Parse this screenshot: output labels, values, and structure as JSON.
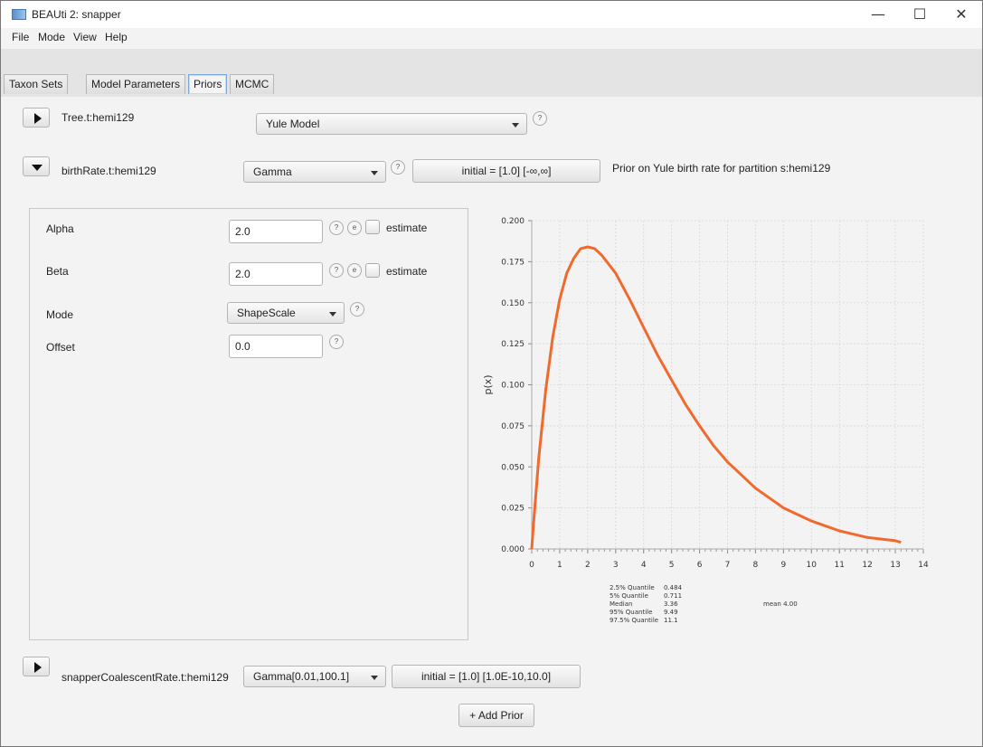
{
  "window": {
    "title": "BEAUti 2: snapper",
    "minimize": "—",
    "maximize": "☐",
    "close": "✕"
  },
  "menu": [
    {
      "label": "File"
    },
    {
      "label": "Mode"
    },
    {
      "label": "View"
    },
    {
      "label": "Help"
    }
  ],
  "tabs": [
    {
      "label": "Taxon Sets"
    },
    {
      "label": "Model Parameters"
    },
    {
      "label": "Priors",
      "active": true
    },
    {
      "label": "MCMC"
    }
  ],
  "priors": {
    "tree": {
      "label": "Tree.t:hemi129",
      "value": "Yule Model"
    },
    "birth": {
      "label": "birthRate.t:hemi129",
      "distribution": "Gamma",
      "initial": "initial = [1.0] [-∞,∞]",
      "description": "Prior on Yule birth rate for partition s:hemi129"
    },
    "params": {
      "alpha_label": "Alpha",
      "alpha_value": "2.0",
      "beta_label": "Beta",
      "beta_value": "2.0",
      "estimate_label": "estimate",
      "mode_label": "Mode",
      "mode_value": "ShapeScale",
      "offset_label": "Offset",
      "offset_value": "0.0"
    },
    "coalescent": {
      "label": "snapperCoalescentRate.t:hemi129",
      "distribution": "Gamma[0.01,100.1]",
      "initial": "initial = [1.0] [1.0E-10,10.0]"
    },
    "add_prior": "+ Add Prior"
  },
  "help_glyph": "?",
  "expand_glyph": "e",
  "chart_data": {
    "type": "line",
    "ylabel": "p(x)",
    "xlim": [
      0,
      14
    ],
    "ylim": [
      0,
      0.2
    ],
    "xticks": [
      "0",
      "1",
      "2",
      "3",
      "4",
      "5",
      "6",
      "7",
      "8",
      "9",
      "10",
      "11",
      "12",
      "13",
      "14"
    ],
    "yticks": [
      "0.000",
      "0.025",
      "0.050",
      "0.075",
      "0.100",
      "0.125",
      "0.150",
      "0.175",
      "0.200"
    ],
    "grid": true,
    "series_color": "#f06a2e",
    "x": [
      0.05,
      0.25,
      0.5,
      0.75,
      1,
      1.25,
      1.5,
      1.75,
      2,
      2.25,
      2.5,
      3,
      3.5,
      4,
      4.5,
      5,
      5.5,
      6,
      6.5,
      7,
      7.5,
      8,
      8.5,
      9,
      9.5,
      10,
      10.5,
      11,
      11.5,
      12,
      12.5,
      13,
      13.2
    ],
    "y": [
      0.012,
      0.055,
      0.097,
      0.129,
      0.152,
      0.168,
      0.177,
      0.183,
      0.184,
      0.183,
      0.179,
      0.168,
      0.152,
      0.135,
      0.118,
      0.103,
      0.088,
      0.075,
      0.063,
      0.053,
      0.045,
      0.037,
      0.031,
      0.025,
      0.021,
      0.017,
      0.014,
      0.011,
      0.009,
      0.007,
      0.006,
      0.005,
      0.004
    ],
    "quantiles": [
      {
        "label": "2.5% Quantile",
        "value": "0.484"
      },
      {
        "label": "5% Quantile",
        "value": "0.711"
      },
      {
        "label": "Median",
        "value": "3.36"
      },
      {
        "label": "95% Quantile",
        "value": "9.49"
      },
      {
        "label": "97.5% Quantile",
        "value": "11.1"
      }
    ],
    "mean_text": "mean 4.00"
  }
}
